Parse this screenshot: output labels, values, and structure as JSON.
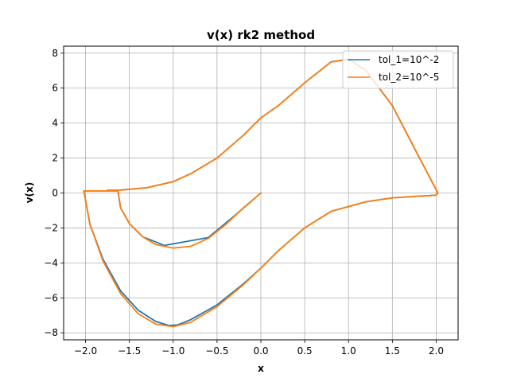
{
  "chart_data": {
    "type": "line",
    "title": "v(x) rk2 method",
    "xlabel": "x",
    "ylabel": "v(x)",
    "xlim": [
      -2.25,
      2.25
    ],
    "ylim": [
      -8.4,
      8.4
    ],
    "xticks": [
      -2.0,
      -1.5,
      -1.0,
      -0.5,
      0.0,
      0.5,
      1.0,
      1.5,
      2.0
    ],
    "xtick_labels": [
      "−2.0",
      "−1.5",
      "−1.0",
      "−0.5",
      "0.0",
      "0.5",
      "1.0",
      "1.5",
      "2.0"
    ],
    "yticks": [
      -8,
      -6,
      -4,
      -2,
      0,
      2,
      4,
      6,
      8
    ],
    "ytick_labels": [
      "−8",
      "−6",
      "−4",
      "−2",
      "0",
      "2",
      "4",
      "6",
      "8"
    ],
    "grid": true,
    "legend_position": "top-right",
    "series": [
      {
        "name": "tol_1=10^-2",
        "color": "#1f77b4",
        "x": [
          0.0,
          -0.3,
          -0.6,
          -1.1,
          -1.35,
          -1.5,
          -1.6,
          -1.63,
          -1.8,
          -2.02,
          -1.95,
          -1.8,
          -1.6,
          -1.4,
          -1.2,
          -1.05,
          -0.95,
          -0.8,
          -0.5,
          -0.2,
          0.0,
          0.2,
          0.5,
          0.8,
          1.2,
          1.5,
          1.8,
          1.93,
          2.0,
          2.02,
          1.8,
          1.5,
          1.2,
          1.0,
          0.8,
          0.5,
          0.2,
          0.0,
          -0.2,
          -0.5,
          -0.8,
          -1.0,
          -1.3,
          -1.6,
          -1.75
        ],
        "y": [
          0.0,
          -1.3,
          -2.55,
          -3.0,
          -2.5,
          -1.75,
          -0.85,
          0.12,
          0.12,
          0.12,
          -1.8,
          -3.8,
          -5.6,
          -6.7,
          -7.35,
          -7.58,
          -7.55,
          -7.25,
          -6.4,
          -5.2,
          -4.3,
          -3.3,
          -2.0,
          -1.05,
          -0.5,
          -0.28,
          -0.18,
          -0.15,
          -0.12,
          0.0,
          2.1,
          5.0,
          7.0,
          7.65,
          7.5,
          6.3,
          5.0,
          4.3,
          3.3,
          2.0,
          1.1,
          0.65,
          0.3,
          0.17,
          0.16
        ]
      },
      {
        "name": "tol_2=10^-5",
        "color": "#ff7f0e",
        "x": [
          0.0,
          -0.2,
          -0.4,
          -0.6,
          -0.8,
          -1.0,
          -1.2,
          -1.35,
          -1.5,
          -1.6,
          -1.63,
          -1.8,
          -2.02,
          -1.95,
          -1.8,
          -1.6,
          -1.4,
          -1.2,
          -1.0,
          -0.8,
          -0.5,
          -0.2,
          0.0,
          0.2,
          0.5,
          0.8,
          1.2,
          1.5,
          1.8,
          1.93,
          2.0,
          2.02,
          1.8,
          1.5,
          1.2,
          1.0,
          0.8,
          0.5,
          0.2,
          0.0,
          -0.2,
          -0.5,
          -0.8,
          -1.0,
          -1.3,
          -1.6,
          -1.75
        ],
        "y": [
          0.0,
          -0.85,
          -1.8,
          -2.6,
          -3.05,
          -3.15,
          -2.95,
          -2.5,
          -1.75,
          -0.85,
          0.12,
          0.12,
          0.12,
          -1.8,
          -3.9,
          -5.75,
          -6.9,
          -7.5,
          -7.65,
          -7.4,
          -6.5,
          -5.25,
          -4.3,
          -3.3,
          -2.0,
          -1.05,
          -0.5,
          -0.28,
          -0.18,
          -0.15,
          -0.12,
          0.0,
          2.1,
          5.0,
          7.0,
          7.65,
          7.5,
          6.3,
          5.0,
          4.3,
          3.3,
          2.0,
          1.1,
          0.65,
          0.3,
          0.17,
          0.16
        ]
      }
    ]
  }
}
